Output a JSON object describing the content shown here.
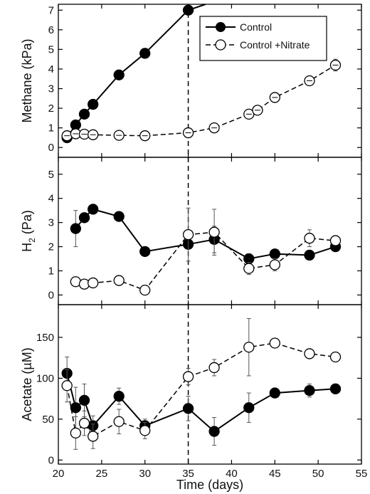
{
  "chart_data": {
    "type": "line",
    "xlabel": "Time (days)",
    "x_ticks": [
      20,
      25,
      30,
      35,
      40,
      45,
      50,
      55
    ],
    "xlim": [
      20,
      55
    ],
    "vline_x": 35,
    "legend": {
      "placement": "top-right of top panel",
      "entries": [
        "Control",
        "Control +Nitrate"
      ]
    },
    "panels": [
      {
        "ylabel": "Methane (kPa)",
        "ylim": [
          -0.5,
          7.3
        ],
        "y_ticks": [
          0,
          1,
          2,
          3,
          4,
          5,
          6,
          7
        ],
        "series": [
          {
            "name": "Control",
            "style": "solid-filled",
            "x": [
              21,
              22,
              23,
              24,
              27,
              30,
              35
            ],
            "y": [
              0.5,
              1.15,
              1.7,
              2.2,
              3.7,
              4.8,
              7.0
            ],
            "err": [
              0,
              0,
              0,
              0,
              0,
              0,
              0
            ],
            "extends_to": [
              37,
              7.3
            ]
          },
          {
            "name": "Control +Nitrate",
            "style": "dashed-open",
            "x": [
              21,
              22,
              23,
              24,
              27,
              30,
              35,
              38,
              42,
              43,
              45,
              49,
              52
            ],
            "y": [
              0.6,
              0.7,
              0.68,
              0.65,
              0.62,
              0.6,
              0.75,
              1.0,
              1.7,
              1.9,
              2.55,
              3.4,
              4.2
            ],
            "err": [
              0,
              0,
              0,
              0,
              0,
              0,
              0,
              0,
              0.1,
              0.1,
              0.15,
              0.15,
              0.3
            ]
          }
        ]
      },
      {
        "ylabel": "H",
        "ylabel_sub": "2",
        "ylabel_unit": " (Pa)",
        "ylim": [
          -0.4,
          5.7
        ],
        "y_ticks": [
          0,
          1,
          2,
          3,
          4,
          5
        ],
        "series": [
          {
            "name": "Control",
            "style": "solid-filled",
            "x": [
              22,
              23,
              24,
              27,
              30,
              35,
              38,
              42,
              45,
              49,
              52
            ],
            "y": [
              2.75,
              3.2,
              3.55,
              3.25,
              1.8,
              2.1,
              2.3,
              1.5,
              1.7,
              1.65,
              2.0
            ],
            "err": [
              0.75,
              0,
              0,
              0,
              0,
              0,
              0.55,
              0.2,
              0,
              0,
              0
            ]
          },
          {
            "name": "Control +Nitrate",
            "style": "dashed-open",
            "x": [
              22,
              23,
              24,
              27,
              30,
              35,
              38,
              42,
              45,
              49,
              52
            ],
            "y": [
              0.55,
              0.45,
              0.5,
              0.6,
              0.2,
              2.5,
              2.6,
              1.1,
              1.25,
              2.35,
              2.25
            ],
            "err": [
              0.1,
              0.1,
              0.1,
              0,
              0,
              1.1,
              0.95,
              0.25,
              0.25,
              0.35,
              0.2
            ]
          }
        ]
      },
      {
        "ylabel": "Acetate (µM)",
        "ylim": [
          -5,
          190
        ],
        "y_ticks": [
          0,
          50,
          100,
          150
        ],
        "series": [
          {
            "name": "Control",
            "style": "solid-filled",
            "x": [
              21,
              22,
              23,
              24,
              27,
              30,
              35,
              38,
              42,
              45,
              49,
              52
            ],
            "y": [
              106,
              64,
              73,
              42,
              78,
              42,
              63,
              35,
              64,
              82,
              85,
              87
            ],
            "err": [
              20,
              25,
              20,
              12,
              10,
              8,
              15,
              17,
              18,
              0,
              8,
              0
            ]
          },
          {
            "name": "Control +Nitrate",
            "style": "dashed-open",
            "x": [
              21,
              22,
              23,
              24,
              27,
              30,
              35,
              38,
              42,
              45,
              49,
              52
            ],
            "y": [
              91,
              33,
              45,
              29,
              47,
              36,
              102,
              113,
              138,
              143,
              130,
              126
            ],
            "err": [
              20,
              20,
              15,
              15,
              15,
              10,
              10,
              10,
              35,
              0,
              0,
              0
            ]
          }
        ]
      }
    ]
  }
}
